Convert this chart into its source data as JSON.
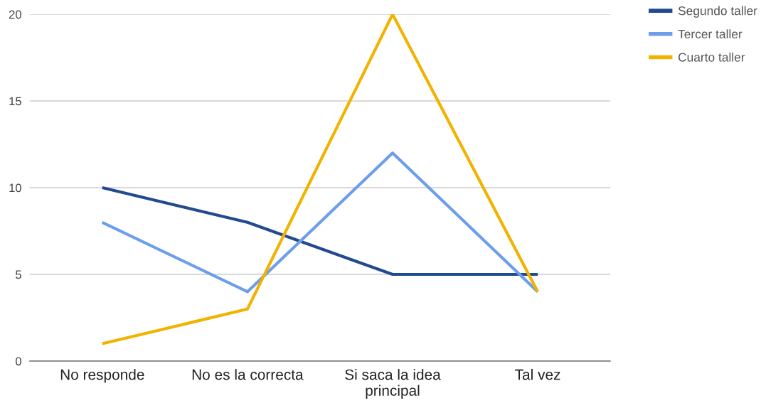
{
  "chart_data": {
    "type": "line",
    "categories": [
      "No responde",
      "No es la correcta",
      "Si saca la idea\nprincipal",
      "Tal vez"
    ],
    "series": [
      {
        "name": "Segundo taller",
        "color": "#224a8f",
        "values": [
          10,
          8,
          5,
          5
        ]
      },
      {
        "name": "Tercer taller",
        "color": "#6d9eeb",
        "values": [
          8,
          4,
          12,
          4
        ]
      },
      {
        "name": "Cuarto taller",
        "color": "#f1b300",
        "values": [
          1,
          3,
          20,
          4
        ]
      }
    ],
    "ylim": [
      0,
      20
    ],
    "yticks": [
      0,
      5,
      10,
      15,
      20
    ],
    "grid": "y",
    "legend": "top right",
    "marker": "none",
    "line_style": "solid"
  }
}
